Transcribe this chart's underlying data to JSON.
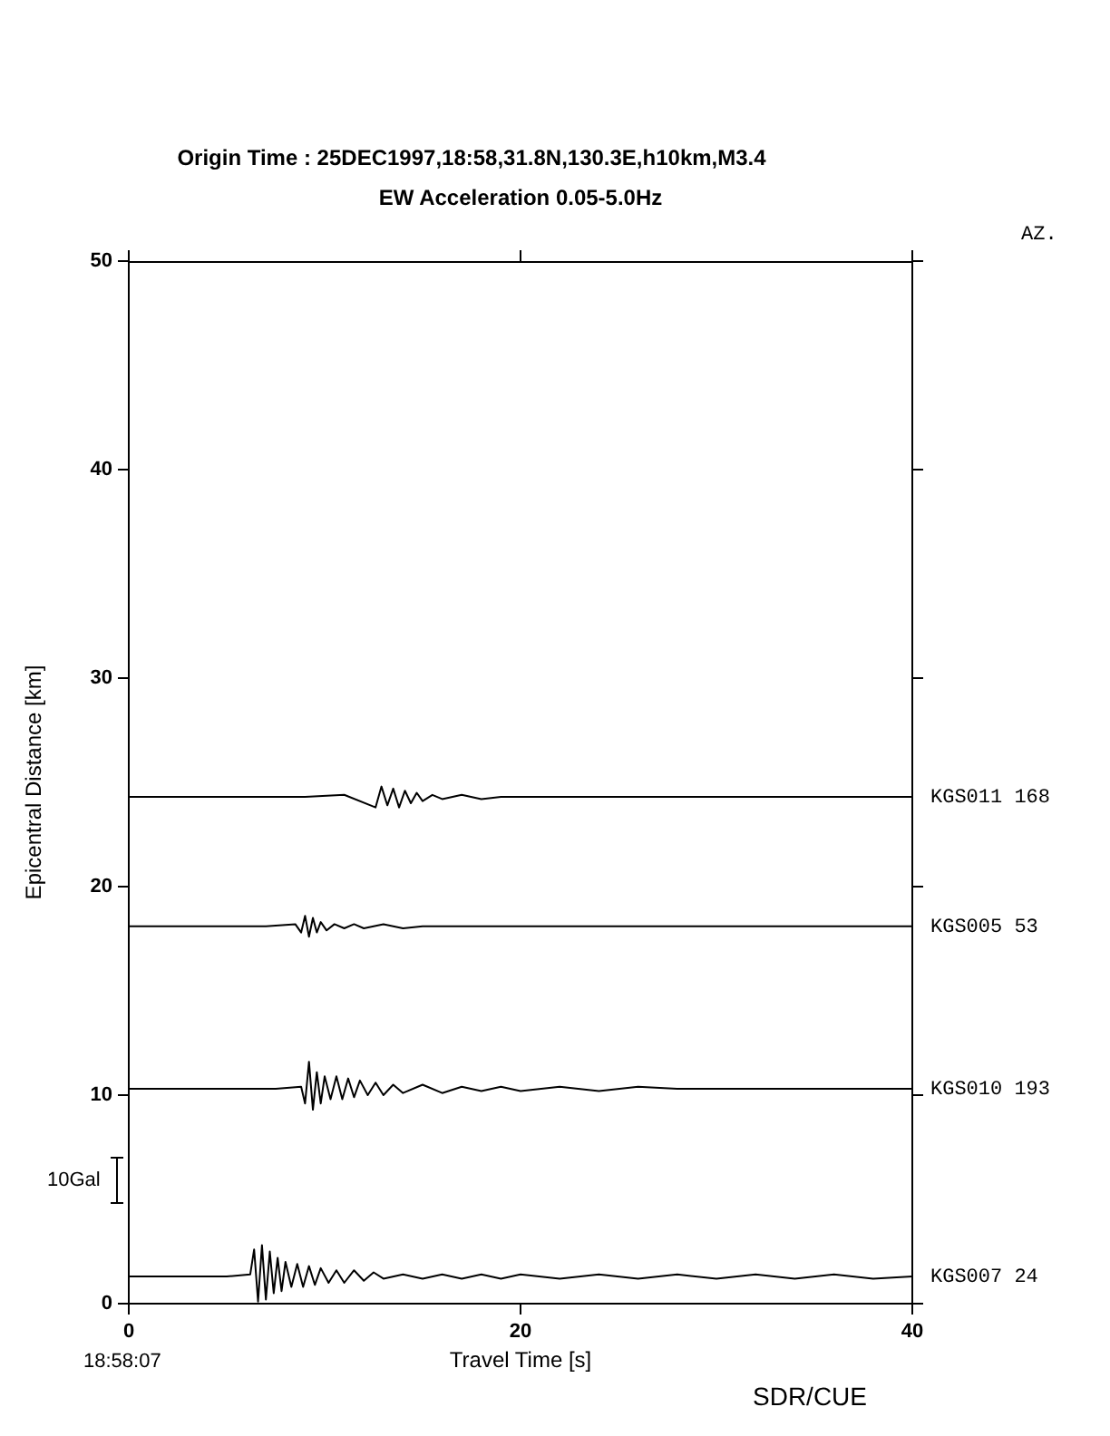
{
  "chart_data": {
    "type": "line",
    "title": "Origin Time : 25DEC1997,18:58,31.8N,130.3E,h10km,M3.4",
    "subtitle": "EW Acceleration 0.05-5.0Hz",
    "xlabel": "Travel Time [s]",
    "ylabel": "Epicentral Distance [km]",
    "xlim": [
      0,
      40
    ],
    "xticks": [
      0,
      20,
      40
    ],
    "ylim": [
      0,
      50
    ],
    "yticks": [
      0,
      10,
      20,
      30,
      40,
      50
    ],
    "grid": false,
    "legend": "right",
    "marker": "none",
    "line_style": "solid",
    "annotations": [
      "AZ.",
      "10Gal",
      "18:58:07",
      "SDR/CUE"
    ],
    "series": [
      {
        "name": "KGS011 168",
        "color": "#000000",
        "x": [
          0,
          9.0,
          11,
          12.6,
          12.9,
          13.2,
          13.5,
          13.8,
          14.1,
          14.4,
          14.7,
          15,
          15.5,
          16,
          17,
          18,
          19,
          20,
          22,
          25,
          30,
          40
        ],
        "values": [
          24.3,
          24.3,
          24.4,
          23.8,
          24.8,
          23.9,
          24.7,
          23.8,
          24.6,
          24.0,
          24.5,
          24.1,
          24.4,
          24.2,
          24.4,
          24.2,
          24.3,
          24.3,
          24.3,
          24.3,
          24.3,
          24.3
        ]
      },
      {
        "name": "KGS005 53",
        "color": "#000000",
        "x": [
          0,
          7.0,
          8.5,
          8.8,
          9.0,
          9.2,
          9.4,
          9.6,
          9.8,
          10.1,
          10.5,
          11,
          11.5,
          12,
          13,
          14,
          15,
          16,
          17,
          18,
          20,
          40
        ],
        "values": [
          18.1,
          18.1,
          18.2,
          17.8,
          18.6,
          17.6,
          18.5,
          17.8,
          18.3,
          17.9,
          18.2,
          18.0,
          18.2,
          18.0,
          18.2,
          18.0,
          18.1,
          18.1,
          18.1,
          18.1,
          18.1,
          18.1
        ]
      },
      {
        "name": "KGS010 193",
        "color": "#000000",
        "x": [
          0,
          7.5,
          8.8,
          9.0,
          9.2,
          9.4,
          9.6,
          9.8,
          10.0,
          10.3,
          10.6,
          10.9,
          11.2,
          11.5,
          11.8,
          12.2,
          12.6,
          13,
          13.5,
          14,
          15,
          16,
          17,
          18,
          19,
          20,
          22,
          24,
          26,
          28,
          30,
          32,
          35,
          38,
          40
        ],
        "values": [
          10.3,
          10.3,
          10.4,
          9.6,
          11.6,
          9.3,
          11.1,
          9.6,
          10.9,
          9.8,
          10.9,
          9.8,
          10.8,
          9.9,
          10.7,
          10.0,
          10.6,
          10.0,
          10.5,
          10.1,
          10.5,
          10.1,
          10.4,
          10.2,
          10.4,
          10.2,
          10.4,
          10.2,
          10.4,
          10.3,
          10.3,
          10.3,
          10.3,
          10.3,
          10.3
        ]
      },
      {
        "name": "KGS007 24",
        "color": "#000000",
        "x": [
          0,
          5.0,
          6.2,
          6.4,
          6.6,
          6.8,
          7.0,
          7.2,
          7.4,
          7.6,
          7.8,
          8.0,
          8.3,
          8.6,
          8.9,
          9.2,
          9.5,
          9.8,
          10.2,
          10.6,
          11,
          11.5,
          12,
          12.5,
          13,
          14,
          15,
          16,
          17,
          18,
          19,
          20,
          22,
          24,
          26,
          28,
          30,
          32,
          34,
          36,
          38,
          40
        ],
        "values": [
          1.3,
          1.3,
          1.4,
          2.6,
          0.1,
          2.8,
          0.2,
          2.5,
          0.5,
          2.2,
          0.6,
          2.0,
          0.8,
          1.9,
          0.8,
          1.8,
          0.9,
          1.7,
          1.0,
          1.6,
          1.0,
          1.6,
          1.1,
          1.5,
          1.2,
          1.4,
          1.2,
          1.4,
          1.2,
          1.4,
          1.2,
          1.4,
          1.2,
          1.4,
          1.2,
          1.4,
          1.2,
          1.4,
          1.2,
          1.4,
          1.2,
          1.3
        ]
      }
    ]
  }
}
